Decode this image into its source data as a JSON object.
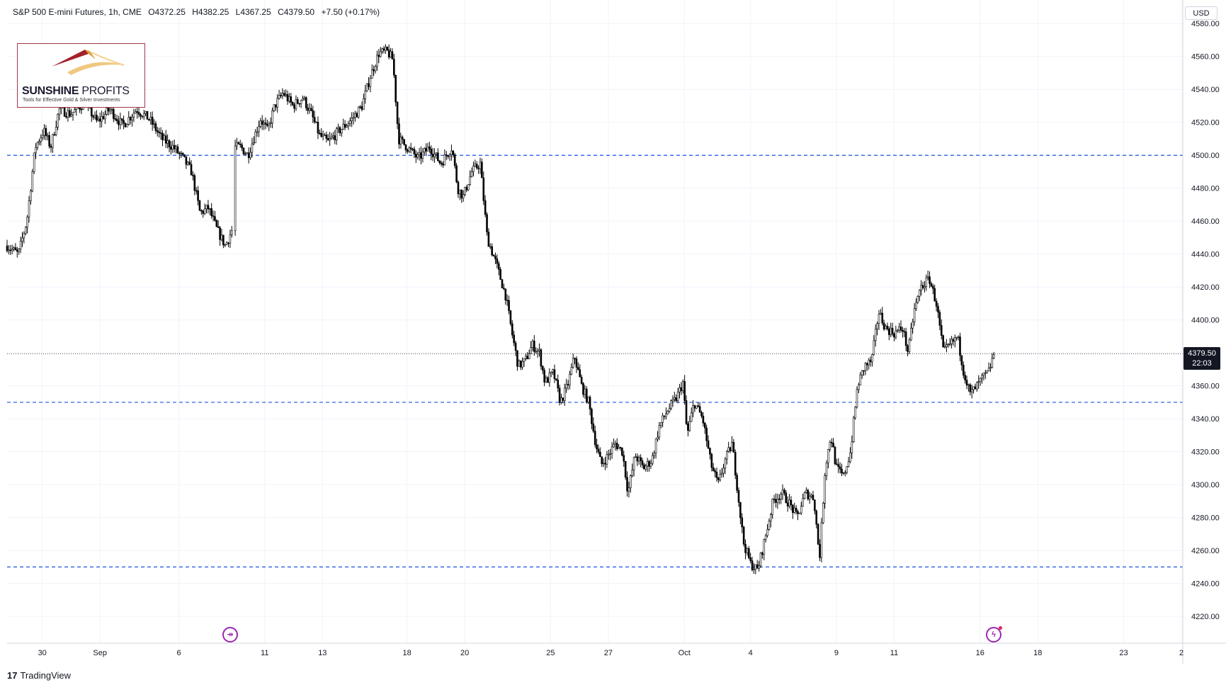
{
  "header": {
    "symbol": "S&P 500 E-mini Futures, 1h, CME",
    "open": "O4372.25",
    "high": "H4382.25",
    "low": "L4367.25",
    "close": "C4379.50",
    "change": "+7.50 (+0.17%)"
  },
  "logo": {
    "brand_bold": "SUNSHINE",
    "brand_light": " PROFITS",
    "tagline": "Tools for Effective Gold & Silver Investments"
  },
  "currency": "USD",
  "last_price": {
    "price": "4379.50",
    "countdown": "22:03"
  },
  "footer": {
    "mark": "17",
    "brand": "TradingView"
  },
  "events": [
    {
      "name": "sep-event-icon",
      "symbol": "↠"
    },
    {
      "name": "oct-event-icon",
      "symbol": "ϟ"
    }
  ],
  "colors": {
    "candles": "#000000",
    "hline": "#1e53e5",
    "grid": "#f0f3fa",
    "event": "#9c27b0"
  },
  "chart_data": {
    "type": "candlestick",
    "title": "S&P 500 E-mini Futures, 1h, CME",
    "ylim": [
      4205,
      4590
    ],
    "y_ticks": [
      4220,
      4240,
      4260,
      4280,
      4300,
      4320,
      4340,
      4360,
      4380,
      4400,
      4420,
      4440,
      4460,
      4480,
      4500,
      4520,
      4540,
      4560,
      4580
    ],
    "x_ticks": [
      {
        "label": "30",
        "slot": 2.5
      },
      {
        "label": "Sep",
        "slot": 6.6
      },
      {
        "label": "6",
        "slot": 12.2
      },
      {
        "label": "11",
        "slot": 18.3
      },
      {
        "label": "13",
        "slot": 22.4
      },
      {
        "label": "18",
        "slot": 28.4
      },
      {
        "label": "20",
        "slot": 32.5
      },
      {
        "label": "25",
        "slot": 38.6
      },
      {
        "label": "27",
        "slot": 42.7
      },
      {
        "label": "Oct",
        "slot": 48.1
      },
      {
        "label": "4",
        "slot": 52.8
      },
      {
        "label": "9",
        "slot": 58.9
      },
      {
        "label": "11",
        "slot": 63.0
      },
      {
        "label": "16",
        "slot": 69.1
      },
      {
        "label": "18",
        "slot": 73.2
      },
      {
        "label": "23",
        "slot": 79.3
      },
      {
        "label": "2",
        "slot": 83.4
      }
    ],
    "x_range": [
      0,
      83.5
    ],
    "horizontal_lines": [
      4500,
      4350,
      4250
    ],
    "last_price": 4379.5,
    "price_anchors": [
      [
        0,
        4445
      ],
      [
        0.8,
        4440
      ],
      [
        1.4,
        4460
      ],
      [
        2.0,
        4505
      ],
      [
        2.6,
        4515
      ],
      [
        3.1,
        4505
      ],
      [
        3.7,
        4528
      ],
      [
        4.5,
        4525
      ],
      [
        5.5,
        4532
      ],
      [
        6.4,
        4520
      ],
      [
        7.3,
        4528
      ],
      [
        8.2,
        4518
      ],
      [
        9.2,
        4528
      ],
      [
        10.1,
        4522
      ],
      [
        11.0,
        4510
      ],
      [
        11.8,
        4505
      ],
      [
        12.5,
        4498
      ],
      [
        13.1,
        4490
      ],
      [
        13.7,
        4465
      ],
      [
        14.3,
        4468
      ],
      [
        14.9,
        4455
      ],
      [
        15.5,
        4445
      ],
      [
        16.0,
        4455
      ],
      [
        16.1,
        4505
      ],
      [
        16.6,
        4505
      ],
      [
        17.1,
        4500
      ],
      [
        17.5,
        4510
      ],
      [
        18.0,
        4522
      ],
      [
        18.5,
        4515
      ],
      [
        19.0,
        4530
      ],
      [
        19.6,
        4538
      ],
      [
        20.3,
        4530
      ],
      [
        21.0,
        4535
      ],
      [
        21.6,
        4525
      ],
      [
        22.2,
        4512
      ],
      [
        22.8,
        4508
      ],
      [
        23.6,
        4515
      ],
      [
        24.5,
        4522
      ],
      [
        25.2,
        4530
      ],
      [
        25.8,
        4548
      ],
      [
        26.4,
        4562
      ],
      [
        27.0,
        4563
      ],
      [
        27.4,
        4558
      ],
      [
        27.8,
        4510
      ],
      [
        28.4,
        4505
      ],
      [
        29.2,
        4498
      ],
      [
        30.0,
        4505
      ],
      [
        30.8,
        4495
      ],
      [
        31.6,
        4505
      ],
      [
        32.0,
        4480
      ],
      [
        32.4,
        4475
      ],
      [
        33.0,
        4490
      ],
      [
        33.6,
        4495
      ],
      [
        34.1,
        4450
      ],
      [
        34.7,
        4435
      ],
      [
        35.4,
        4415
      ],
      [
        35.9,
        4390
      ],
      [
        36.3,
        4372
      ],
      [
        36.8,
        4375
      ],
      [
        37.3,
        4385
      ],
      [
        37.8,
        4380
      ],
      [
        38.2,
        4362
      ],
      [
        38.8,
        4368
      ],
      [
        39.3,
        4350
      ],
      [
        39.8,
        4360
      ],
      [
        40.3,
        4378
      ],
      [
        40.8,
        4360
      ],
      [
        41.3,
        4350
      ],
      [
        41.8,
        4325
      ],
      [
        42.2,
        4312
      ],
      [
        42.7,
        4318
      ],
      [
        43.2,
        4325
      ],
      [
        43.7,
        4320
      ],
      [
        44.1,
        4295
      ],
      [
        44.6,
        4318
      ],
      [
        45.2,
        4310
      ],
      [
        45.8,
        4315
      ],
      [
        46.3,
        4335
      ],
      [
        46.9,
        4345
      ],
      [
        47.5,
        4352
      ],
      [
        48.0,
        4362
      ],
      [
        48.3,
        4330
      ],
      [
        48.8,
        4350
      ],
      [
        49.4,
        4340
      ],
      [
        50.0,
        4312
      ],
      [
        50.5,
        4300
      ],
      [
        51.0,
        4315
      ],
      [
        51.5,
        4325
      ],
      [
        51.9,
        4295
      ],
      [
        52.3,
        4265
      ],
      [
        52.8,
        4252
      ],
      [
        53.3,
        4248
      ],
      [
        53.9,
        4270
      ],
      [
        54.4,
        4290
      ],
      [
        55.0,
        4295
      ],
      [
        55.6,
        4288
      ],
      [
        56.1,
        4280
      ],
      [
        56.7,
        4295
      ],
      [
        57.3,
        4292
      ],
      [
        57.7,
        4255
      ],
      [
        58.1,
        4310
      ],
      [
        58.5,
        4330
      ],
      [
        58.9,
        4310
      ],
      [
        59.4,
        4305
      ],
      [
        59.9,
        4320
      ],
      [
        60.4,
        4360
      ],
      [
        60.9,
        4372
      ],
      [
        61.4,
        4375
      ],
      [
        61.9,
        4405
      ],
      [
        62.4,
        4395
      ],
      [
        63.0,
        4392
      ],
      [
        63.6,
        4395
      ],
      [
        64.0,
        4380
      ],
      [
        64.4,
        4405
      ],
      [
        64.9,
        4420
      ],
      [
        65.5,
        4425
      ],
      [
        66.0,
        4410
      ],
      [
        66.5,
        4380
      ],
      [
        67.0,
        4385
      ],
      [
        67.5,
        4390
      ],
      [
        67.9,
        4370
      ],
      [
        68.4,
        4355
      ],
      [
        68.9,
        4360
      ],
      [
        69.3,
        4365
      ],
      [
        69.7,
        4368
      ],
      [
        70.1,
        4380
      ]
    ]
  }
}
